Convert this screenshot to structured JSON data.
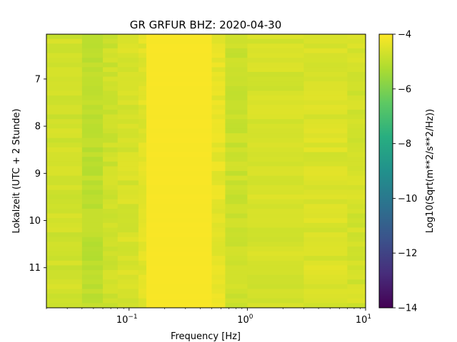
{
  "chart_data": {
    "type": "heatmap",
    "title": "GR GRFUR  BHZ: 2020-04-30",
    "xlabel": "Frequency [Hz]",
    "ylabel": "Lokalzeit (UTC + 2 Stunde)",
    "colorbar_label": "Log10(Sqrt(m**2/s**2/Hz))",
    "colormap": "viridis",
    "x_scale": "log",
    "x_range": [
      0.02,
      10
    ],
    "y_range": [
      6.05,
      11.85
    ],
    "y_inverted": true,
    "color_range": [
      -14,
      -4
    ],
    "x_ticks": [
      {
        "base": "10",
        "exp": "−1",
        "value": 0.1
      },
      {
        "base": "10",
        "exp": "0",
        "value": 1
      },
      {
        "base": "10",
        "exp": "1",
        "value": 10
      }
    ],
    "y_ticks": [
      "7",
      "8",
      "9",
      "10",
      "11"
    ],
    "colorbar_ticks": [
      "−4",
      "−6",
      "−8",
      "−10",
      "−12",
      "−14"
    ],
    "frequency_bands": [
      {
        "f_from": 0.02,
        "f_to": 0.04,
        "log_amplitude": -4.7
      },
      {
        "f_from": 0.04,
        "f_to": 0.06,
        "log_amplitude": -5.0
      },
      {
        "f_from": 0.06,
        "f_to": 0.08,
        "log_amplitude": -4.75
      },
      {
        "f_from": 0.08,
        "f_to": 0.12,
        "log_amplitude": -4.6
      },
      {
        "f_from": 0.12,
        "f_to": 0.14,
        "log_amplitude": -4.45
      },
      {
        "f_from": 0.14,
        "f_to": 0.5,
        "log_amplitude": -4.08
      },
      {
        "f_from": 0.5,
        "f_to": 0.65,
        "log_amplitude": -4.35
      },
      {
        "f_from": 0.65,
        "f_to": 1.0,
        "log_amplitude": -4.78
      },
      {
        "f_from": 1.0,
        "f_to": 3.0,
        "log_amplitude": -4.62
      },
      {
        "f_from": 3.0,
        "f_to": 7.0,
        "log_amplitude": -4.55
      },
      {
        "f_from": 7.0,
        "f_to": 10.0,
        "log_amplitude": -4.65
      }
    ]
  }
}
